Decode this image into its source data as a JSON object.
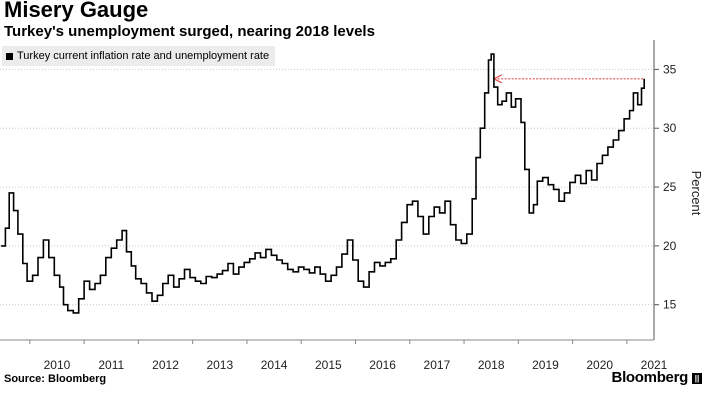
{
  "header": {
    "title": "Misery Gauge",
    "subtitle": "Turkey's unemployment surged, nearing 2018 levels"
  },
  "footer": {
    "source": "Source: Bloomberg",
    "brand": "Bloomberg",
    "brand_mark": "||"
  },
  "colors": {
    "line": "#000000",
    "arrow": "#e05050",
    "grid": "#c8c8c8",
    "legend_bg": "#ececec"
  },
  "chart_data": {
    "type": "line",
    "title": "Misery Gauge",
    "subtitle": "Turkey's unemployment surged, nearing 2018 levels",
    "legend": [
      "Turkey current inflation rate and unemployment rate"
    ],
    "legend_position": "top-left",
    "ylabel": "Percent",
    "xlabel": "",
    "xlim": [
      2009.45,
      2021.5
    ],
    "ylim": [
      12,
      37.5
    ],
    "y_ticks": [
      15,
      20,
      25,
      30,
      35
    ],
    "x_ticks": [
      2010,
      2011,
      2012,
      2013,
      2014,
      2015,
      2016,
      2017,
      2018,
      2019,
      2020,
      2021
    ],
    "grid": true,
    "annotation": {
      "type": "arrow",
      "from": {
        "x": 2021.3,
        "y": 34.2
      },
      "to": {
        "x": 2018.55,
        "y": 34.2
      },
      "style": "dotted"
    },
    "series": [
      {
        "name": "Turkey current inflation rate and unemployment rate",
        "x": [
          2009.47,
          2009.55,
          2009.62,
          2009.7,
          2009.78,
          2009.87,
          2009.95,
          2010.05,
          2010.15,
          2010.25,
          2010.35,
          2010.45,
          2010.55,
          2010.62,
          2010.7,
          2010.8,
          2010.9,
          2011.0,
          2011.1,
          2011.2,
          2011.3,
          2011.4,
          2011.5,
          2011.6,
          2011.7,
          2011.78,
          2011.87,
          2011.95,
          2012.05,
          2012.15,
          2012.25,
          2012.35,
          2012.45,
          2012.55,
          2012.65,
          2012.75,
          2012.85,
          2012.95,
          2013.05,
          2013.15,
          2013.25,
          2013.35,
          2013.45,
          2013.55,
          2013.65,
          2013.75,
          2013.85,
          2013.95,
          2014.05,
          2014.15,
          2014.25,
          2014.35,
          2014.45,
          2014.55,
          2014.65,
          2014.75,
          2014.85,
          2014.95,
          2015.05,
          2015.15,
          2015.25,
          2015.35,
          2015.45,
          2015.55,
          2015.65,
          2015.75,
          2015.85,
          2015.95,
          2016.05,
          2016.15,
          2016.25,
          2016.35,
          2016.45,
          2016.55,
          2016.65,
          2016.75,
          2016.85,
          2016.95,
          2017.05,
          2017.15,
          2017.25,
          2017.35,
          2017.45,
          2017.55,
          2017.65,
          2017.75,
          2017.85,
          2017.95,
          2018.05,
          2018.15,
          2018.22,
          2018.3,
          2018.38,
          2018.45,
          2018.5,
          2018.55,
          2018.62,
          2018.7,
          2018.78,
          2018.87,
          2018.95,
          2019.05,
          2019.12,
          2019.2,
          2019.28,
          2019.35,
          2019.45,
          2019.55,
          2019.65,
          2019.75,
          2019.85,
          2019.95,
          2020.05,
          2020.15,
          2020.25,
          2020.35,
          2020.45,
          2020.55,
          2020.65,
          2020.75,
          2020.85,
          2020.95,
          2021.05,
          2021.12,
          2021.2,
          2021.27,
          2021.32
        ],
        "values": [
          20.0,
          21.5,
          24.5,
          23.0,
          21.0,
          18.5,
          17.0,
          17.5,
          19.0,
          20.5,
          19.0,
          17.5,
          16.5,
          15.0,
          14.5,
          14.3,
          15.5,
          17.0,
          16.3,
          16.8,
          17.5,
          19.0,
          19.8,
          20.5,
          21.3,
          19.5,
          18.3,
          17.2,
          16.8,
          16.0,
          15.3,
          15.8,
          16.8,
          17.5,
          16.5,
          17.2,
          18.0,
          17.3,
          17.0,
          16.8,
          17.4,
          17.3,
          17.6,
          17.9,
          18.5,
          17.6,
          18.2,
          18.6,
          18.9,
          19.4,
          19.0,
          19.7,
          19.2,
          18.8,
          18.5,
          18.0,
          17.8,
          18.2,
          18.0,
          17.7,
          18.2,
          17.6,
          17.0,
          17.5,
          18.2,
          19.3,
          20.5,
          18.8,
          17.0,
          16.5,
          17.8,
          18.6,
          18.3,
          18.6,
          18.9,
          20.5,
          22.0,
          23.5,
          23.8,
          22.5,
          21.0,
          22.5,
          23.3,
          22.8,
          23.8,
          21.8,
          20.5,
          20.2,
          21.0,
          24.0,
          27.5,
          30.0,
          33.0,
          35.8,
          36.3,
          33.5,
          32.0,
          32.3,
          33.0,
          31.8,
          32.5,
          30.5,
          26.5,
          22.8,
          23.5,
          25.5,
          25.8,
          25.2,
          24.8,
          23.8,
          24.5,
          25.4,
          26.0,
          25.3,
          26.4,
          25.6,
          27.0,
          27.7,
          28.4,
          29.0,
          29.8,
          30.8,
          31.5,
          33.0,
          32.0,
          33.4,
          34.2
        ]
      }
    ]
  }
}
